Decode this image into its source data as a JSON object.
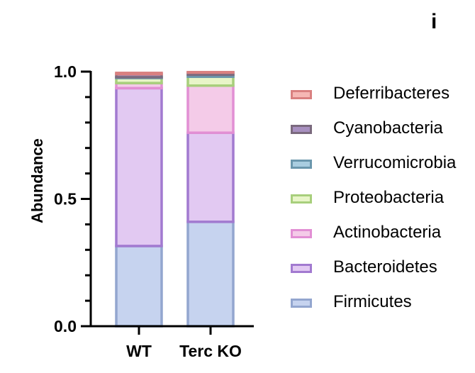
{
  "panel_label": "i",
  "chart_data": {
    "type": "bar",
    "stacked": true,
    "categories": [
      "WT",
      "Terc KO"
    ],
    "ylabel": "Abundance",
    "xlabel": "",
    "ylim": [
      0,
      1.0
    ],
    "yticks": [
      0.0,
      0.5,
      1.0
    ],
    "ytick_labels": [
      "0.0",
      "0.5",
      "1.0"
    ],
    "legend_position": "right",
    "series": [
      {
        "name": "Firmicutes",
        "values": [
          0.315,
          0.41
        ],
        "fill": "#c6d3ef",
        "stroke": "#93a6cf"
      },
      {
        "name": "Bacteroidetes",
        "values": [
          0.62,
          0.35
        ],
        "fill": "#e2c9f2",
        "stroke": "#a27ad0"
      },
      {
        "name": "Actinobacteria",
        "values": [
          0.02,
          0.185
        ],
        "fill": "#f4cbe8",
        "stroke": "#e28fd4"
      },
      {
        "name": "Proteobacteria",
        "values": [
          0.02,
          0.035
        ],
        "fill": "#e8f5c8",
        "stroke": "#a8cf7c"
      },
      {
        "name": "Verrucomicrobia",
        "values": [
          0.003,
          0.008
        ],
        "fill": "#a9cde0",
        "stroke": "#6b97ad"
      },
      {
        "name": "Cyanobacteria",
        "values": [
          0.012,
          0.008
        ],
        "fill": "#a890c0",
        "stroke": "#7b6a7e"
      },
      {
        "name": "Deferribacteres",
        "values": [
          0.005,
          0.002
        ],
        "fill": "#f5b7b4",
        "stroke": "#d98080"
      }
    ]
  }
}
